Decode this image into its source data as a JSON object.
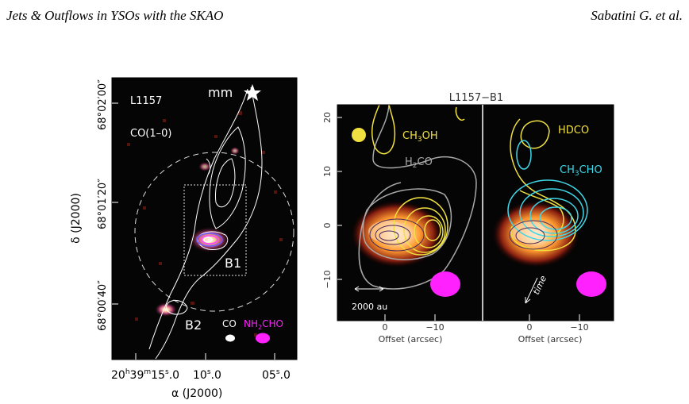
{
  "header": {
    "left": "Jets & Outflows in YSOs with the SKAO",
    "right": "Sabatini G. et al."
  },
  "left_panel": {
    "source": "L1157",
    "tracer": "CO(1–0)",
    "mm_label": "mm",
    "b1": "B1",
    "b2": "B2",
    "beam_co": "CO",
    "beam_nh2cho_a": "NH",
    "beam_nh2cho_sub": "2",
    "beam_nh2cho_b": "CHO",
    "ra_label": "α (J2000)",
    "dec_label": "δ (J2000)",
    "ra_ticks": [
      {
        "h": "20",
        "hs": "h",
        "m": "39",
        "ms": "m",
        "s": "15",
        "ss": "s",
        "f": ".0"
      },
      {
        "h": "",
        "hs": "",
        "m": "",
        "ms": "",
        "s": "10",
        "ss": "s",
        "f": ".0"
      },
      {
        "h": "",
        "hs": "",
        "m": "",
        "ms": "",
        "s": "05",
        "ss": "s",
        "f": ".0"
      }
    ],
    "dec_ticks": [
      "68°02′00″",
      "68°01′20″",
      "68°00′40″"
    ],
    "colors": {
      "contour": "#ffffff",
      "beam_co": "#ffffff",
      "beam_nh2cho": "#ff22ff",
      "background": "#050505"
    }
  },
  "right_panel": {
    "title": "L1157−B1",
    "x_label": "Offset (arcsec)",
    "x_ticks": [
      "0",
      "−10"
    ],
    "y_ticks": [
      "20",
      "10",
      "0",
      "−10"
    ],
    "scale_bar": "2000 au",
    "time_label": "time",
    "sub1": {
      "ch3oh_a": "CH",
      "ch3oh_sub": "3",
      "ch3oh_b": "OH",
      "h2co_a": "H",
      "h2co_sub": "2",
      "h2co_b": "CO"
    },
    "sub2": {
      "hdco": "HDCO",
      "ch3cho_a": "CH",
      "ch3cho_sub": "3",
      "ch3cho_b": "CHO"
    },
    "colors": {
      "ch3oh": "#f0e040",
      "h2co": "#a8a8a8",
      "hdco": "#f0e040",
      "ch3cho": "#40d8e8",
      "beam": "#ff22ff",
      "emission": "#ff8c20"
    }
  }
}
